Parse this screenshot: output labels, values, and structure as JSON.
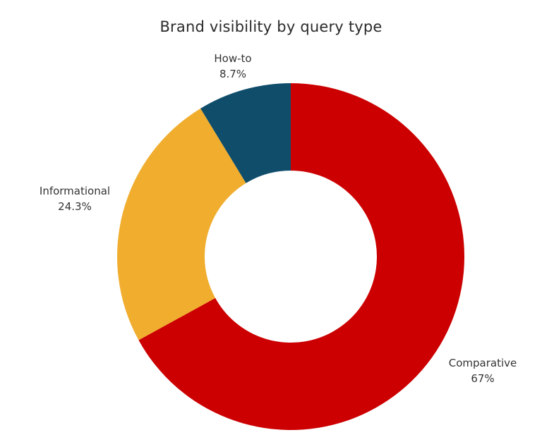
{
  "chart_data": {
    "type": "pie",
    "title": "Brand visibility by query type",
    "slices": [
      {
        "label": "Comparative",
        "value": 67,
        "value_label": "67%",
        "color": "#cc0000"
      },
      {
        "label": "Informational",
        "value": 24.3,
        "value_label": "24.3%",
        "color": "#f0ad2e"
      },
      {
        "label": "How-to",
        "value": 8.7,
        "value_label": "8.7%",
        "color": "#0f4d6b"
      }
    ],
    "start": "12 o'clock",
    "direction": "clockwise",
    "donut": true,
    "legend": "none"
  }
}
